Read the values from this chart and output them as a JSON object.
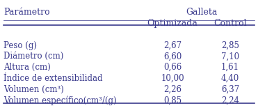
{
  "col_header_1": "Parámetro",
  "col_header_group": "Galleta",
  "col_header_2": "Optimizada",
  "col_header_3": "Control",
  "rows": [
    [
      "Peso (g)",
      "2,67",
      "2,85"
    ],
    [
      "Diámetro (cm)",
      "6,60",
      "7,10"
    ],
    [
      "Altura (cm)",
      "0,66",
      "1,61"
    ],
    [
      "Índice de extensibilidad",
      "10,00",
      "4,40"
    ],
    [
      "Volumen (cm³)",
      "2,26",
      "6,37"
    ],
    [
      "Volumen específico(cm³/(g)",
      "0,85",
      "2,24"
    ]
  ],
  "text_color": "#3a3a8c",
  "bg_color": "#ffffff",
  "font_size": 8.5,
  "header_font_size": 9.0,
  "line_color": "#3a3a8c"
}
